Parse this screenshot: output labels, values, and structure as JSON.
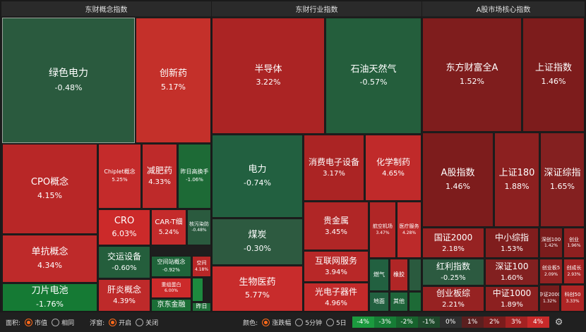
{
  "panels": [
    {
      "title": "东财概念指数",
      "cells": [
        {
          "name": "绿色电力",
          "pct": "-0.48%",
          "color": "#2a5a3e",
          "selected": true
        },
        {
          "name": "创新药",
          "pct": "5.17%",
          "color": "#c4302a"
        },
        {
          "name": "CPO概念",
          "pct": "4.15%",
          "color": "#b82727"
        },
        {
          "name": "Chiplet概念",
          "pct": "5.25%",
          "color": "#c42b2b"
        },
        {
          "name": "减肥药",
          "pct": "4.33%",
          "color": "#be2a2a"
        },
        {
          "name": "昨日高换手",
          "pct": "-1.06%",
          "color": "#1d6a36"
        },
        {
          "name": "CRO",
          "pct": "6.03%",
          "color": "#cc2a2a"
        },
        {
          "name": "CAR-T细",
          "pct": "5.24%",
          "color": "#c42b2b"
        },
        {
          "name": "核污染防",
          "pct": "-0.48%",
          "color": "#2a5a3e"
        },
        {
          "name": "单抗概念",
          "pct": "4.34%",
          "color": "#be2a2a"
        },
        {
          "name": "交运设备",
          "pct": "-0.60%",
          "color": "#245e3c"
        },
        {
          "name": "空间站概念",
          "pct": "-0.92%",
          "color": "#1f643a"
        },
        {
          "name": "空间",
          "pct": "4.18%",
          "color": "#b82727"
        },
        {
          "name": "刀片电池",
          "pct": "-1.76%",
          "color": "#157a34"
        },
        {
          "name": "肝炎概念",
          "pct": "4.39%",
          "color": "#be2a2a"
        },
        {
          "name": "重组蛋白",
          "pct": "6.00%",
          "color": "#cc2a2a"
        },
        {
          "name": "京东金融",
          "pct": "",
          "color": "#1a6e36"
        },
        {
          "name": "",
          "pct": "",
          "color": "#1d8a3e"
        },
        {
          "name": "昨日",
          "pct": "",
          "color": "#1e6e38"
        }
      ]
    },
    {
      "title": "东财行业指数",
      "cells": [
        {
          "name": "半导体",
          "pct": "3.22%",
          "color": "#ab2424"
        },
        {
          "name": "石油天然气",
          "pct": "-0.57%",
          "color": "#245e3c"
        },
        {
          "name": "电力",
          "pct": "-0.74%",
          "color": "#226040"
        },
        {
          "name": "消费电子设备",
          "pct": "3.17%",
          "color": "#ab2424"
        },
        {
          "name": "化学制药",
          "pct": "4.65%",
          "color": "#c02a2a"
        },
        {
          "name": "煤炭",
          "pct": "-0.30%",
          "color": "#2d5a40"
        },
        {
          "name": "贵金属",
          "pct": "3.45%",
          "color": "#b02626"
        },
        {
          "name": "航空机场",
          "pct": "3.47%",
          "color": "#b02626"
        },
        {
          "name": "医疗服务",
          "pct": "4.28%",
          "color": "#bc2a2a"
        },
        {
          "name": "互联网服务",
          "pct": "3.94%",
          "color": "#b82828"
        },
        {
          "name": "燃气",
          "pct": "",
          "color": "#226040"
        },
        {
          "name": "橡胶",
          "pct": "",
          "color": "#b02626"
        },
        {
          "name": "",
          "pct": "",
          "color": "#2a5a3e"
        },
        {
          "name": "生物医药",
          "pct": "5.77%",
          "color": "#c82c2c"
        },
        {
          "name": "光电子器件",
          "pct": "4.96%",
          "color": "#c22a2a"
        },
        {
          "name": "地面",
          "pct": "",
          "color": "#226040"
        },
        {
          "name": "其他",
          "pct": "",
          "color": "#1f643a"
        },
        {
          "name": "",
          "pct": "",
          "color": "#1d6a36"
        }
      ]
    },
    {
      "title": "A股市场核心指数",
      "cells": [
        {
          "name": "东方财富全A",
          "pct": "1.52%",
          "color": "#7f1d1d"
        },
        {
          "name": "上证指数",
          "pct": "1.46%",
          "color": "#7d1c1c"
        },
        {
          "name": "A股指数",
          "pct": "1.46%",
          "color": "#7d1c1c"
        },
        {
          "name": "上证180",
          "pct": "1.88%",
          "color": "#8c2020"
        },
        {
          "name": "深证综指",
          "pct": "1.65%",
          "color": "#842020"
        },
        {
          "name": "国证2000",
          "pct": "2.18%",
          "color": "#962222"
        },
        {
          "name": "中小综指",
          "pct": "1.53%",
          "color": "#7f1d1d"
        },
        {
          "name": "深创100",
          "pct": "1.42%",
          "color": "#7a1c1c"
        },
        {
          "name": "创业",
          "pct": "1.96%",
          "color": "#8e2020"
        },
        {
          "name": "红利指数",
          "pct": "-0.25%",
          "color": "#2c5a40"
        },
        {
          "name": "深证100",
          "pct": "1.60%",
          "color": "#822020"
        },
        {
          "name": "创业板5",
          "pct": "2.09%",
          "color": "#922222"
        },
        {
          "name": "创成长",
          "pct": "2.93%",
          "color": "#a62424"
        },
        {
          "name": "创业板综",
          "pct": "2.21%",
          "color": "#962222"
        },
        {
          "name": "中证1000",
          "pct": "1.89%",
          "color": "#8c2020"
        },
        {
          "name": "中证2000",
          "pct": "1.32%",
          "color": "#761c1c"
        },
        {
          "name": "科创50",
          "pct": "3.33%",
          "color": "#ae2525"
        }
      ]
    }
  ],
  "bottombar": {
    "area_label": "面积:",
    "area_options": [
      "市值",
      "相同"
    ],
    "float_label": "浮窗:",
    "float_options": [
      "开启",
      "关闭"
    ],
    "color_label": "颜色:",
    "color_options": [
      "涨跌幅",
      "5分钟",
      "5日"
    ],
    "legend": [
      {
        "label": "-4%",
        "color": "#1b9a3e"
      },
      {
        "label": "-3%",
        "color": "#167d35"
      },
      {
        "label": "-2%",
        "color": "#17642d"
      },
      {
        "label": "-1%",
        "color": "#1f4a2c"
      },
      {
        "label": "0%",
        "color": "#2f2f2f"
      },
      {
        "label": "1%",
        "color": "#5a1f1f"
      },
      {
        "label": "2%",
        "color": "#7a1c1c"
      },
      {
        "label": "3%",
        "color": "#a42222"
      },
      {
        "label": "4%",
        "color": "#c82a2a"
      }
    ],
    "settings_icon": "gear-icon"
  }
}
